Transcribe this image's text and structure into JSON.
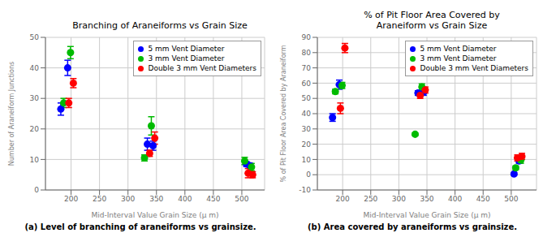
{
  "chart_data": [
    {
      "type": "scatter",
      "title": "Branching of Araneiforms vs Grain Size",
      "subtitle": "(a) Level of branching of araneiforms vs grainsize.",
      "xlabel": "Mid-Interval Value Grain Size (μ m)",
      "ylabel": "Number of Araneiform Junctions",
      "xlim": [
        155,
        540
      ],
      "ylim": [
        0,
        50
      ],
      "xticks": [
        200,
        250,
        300,
        350,
        400,
        450,
        500
      ],
      "yticks": [
        0,
        10,
        20,
        30,
        40,
        50
      ],
      "grid": true,
      "legend": "upper right",
      "series": [
        {
          "name": "5 mm Vent Diameter",
          "color": "#0000FF",
          "x": [
            182,
            194,
            334,
            344,
            508,
            514
          ],
          "values": [
            26.5,
            40.0,
            15.0,
            14.5,
            8.5,
            8.0
          ],
          "yerr": [
            2.0,
            2.5,
            2.0,
            1.5,
            0.8,
            0.8
          ]
        },
        {
          "name": "3 mm Vent Diameter",
          "color": "#00BB00",
          "x": [
            187,
            199,
            329,
            341,
            505,
            517
          ],
          "values": [
            28.5,
            45.0,
            10.5,
            21.0,
            9.5,
            7.5
          ],
          "yerr": [
            1.5,
            2.0,
            1.0,
            3.0,
            1.2,
            1.2
          ]
        },
        {
          "name": "Double 3 mm Vent Diameters",
          "color": "#FF0000",
          "x": [
            196,
            204,
            338,
            347,
            511,
            519
          ],
          "values": [
            28.5,
            35.0,
            12.0,
            17.0,
            5.5,
            5.0
          ],
          "yerr": [
            1.5,
            1.5,
            1.0,
            2.0,
            1.5,
            1.0
          ]
        }
      ]
    },
    {
      "type": "scatter",
      "title": "% of Pit Floor Area Covered by\nAraneiform vs Grain Size",
      "subtitle": "(b) Area covered by araneiforms vs grainsize.",
      "xlabel": "Mid-Interval Value Grain Size (μ m)",
      "ylabel": "% of Pit Floor Area Covered by Araneiform",
      "xlim": [
        155,
        545
      ],
      "ylim": [
        -10,
        90
      ],
      "xticks": [
        200,
        250,
        300,
        350,
        400,
        450,
        500
      ],
      "yticks": [
        -10,
        0,
        10,
        20,
        30,
        40,
        50,
        60,
        70,
        80,
        90
      ],
      "grid": true,
      "legend": "upper right",
      "series": [
        {
          "name": "5 mm Vent Diameter",
          "color": "#0000FF",
          "x": [
            182,
            194,
            334,
            344,
            505,
            514
          ],
          "values": [
            37.5,
            59.0,
            53.5,
            54.0,
            0.5,
            9.0
          ],
          "yerr": [
            2.5,
            3.0,
            1.5,
            2.0,
            0.8,
            1.5
          ]
        },
        {
          "name": "3 mm Vent Diameter",
          "color": "#00BB00",
          "x": [
            187,
            199,
            329,
            341,
            508,
            517
          ],
          "values": [
            54.5,
            58.5,
            26.5,
            57.5,
            4.5,
            9.5
          ],
          "yerr": [
            1.5,
            2.0,
            0.8,
            2.0,
            1.2,
            2.0
          ]
        },
        {
          "name": "Double 3 mm Vent Diameters",
          "color": "#FF0000",
          "x": [
            196,
            204,
            338,
            347,
            511,
            519
          ],
          "values": [
            43.5,
            83.0,
            52.0,
            55.5,
            11.0,
            12.0
          ],
          "yerr": [
            3.5,
            3.0,
            2.0,
            2.0,
            2.0,
            2.0
          ]
        }
      ]
    }
  ]
}
